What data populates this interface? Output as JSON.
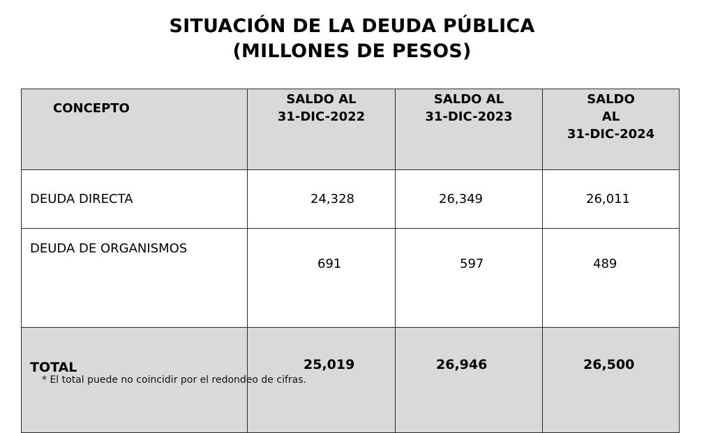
{
  "title": {
    "line1": "SITUACIÓN DE LA DEUDA PÚBLICA",
    "line2": "(MILLONES DE PESOS)"
  },
  "table": {
    "header": {
      "concepto": "CONCEPTO",
      "col_2022": [
        "SALDO AL",
        "31-DIC-2022"
      ],
      "col_2023": [
        "SALDO AL",
        "31-DIC-2023"
      ],
      "col_2024": [
        "SALDO",
        "AL",
        "31-DIC-2024"
      ]
    },
    "rows": [
      {
        "concepto": "DEUDA DIRECTA",
        "values": [
          "24,328",
          "26,349",
          "26,011"
        ]
      },
      {
        "concepto": "DEUDA DE ORGANISMOS",
        "values": [
          "691",
          "597",
          "489"
        ]
      },
      {
        "concepto": "TOTAL",
        "values": [
          "25,019",
          "26,946",
          "26,500"
        ]
      }
    ]
  },
  "footnote": "* El total puede no coincidir por el redondeo de cifras.",
  "colors": {
    "header_background": "#d9d9d9",
    "total_background": "#d9d9d9",
    "border": "#2a2a2a",
    "text": "#000000"
  }
}
